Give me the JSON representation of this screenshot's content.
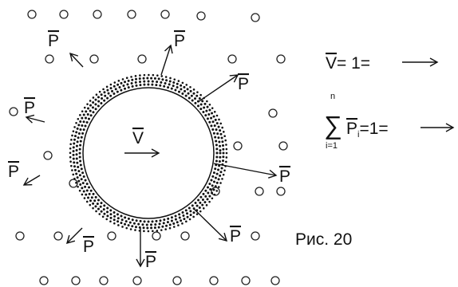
{
  "particle_labels": [
    "P",
    "P",
    "P",
    "P",
    "P",
    "P",
    "P",
    "P",
    "P"
  ],
  "center_label": "V",
  "legend": {
    "v_symbol": "V",
    "v_equation": "= 1=",
    "sum_upper": "n",
    "sum_symbol": "∑",
    "sum_lower": "i=1",
    "p_symbol": "P",
    "p_index": "i",
    "p_equation": "=1="
  },
  "caption": "Рис. 20"
}
